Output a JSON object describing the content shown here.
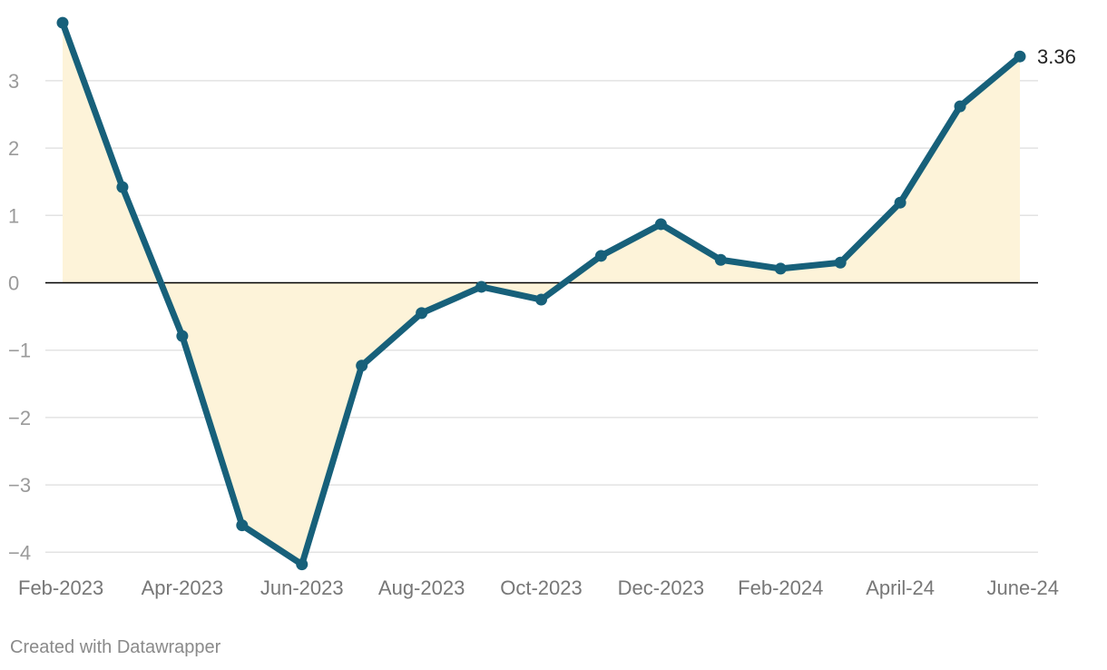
{
  "chart_data": {
    "type": "area",
    "x": [
      "Feb-2023",
      "Mar-2023",
      "Apr-2023",
      "May-2023",
      "Jun-2023",
      "Jul-2023",
      "Aug-2023",
      "Sep-2023",
      "Oct-2023",
      "Nov-2023",
      "Dec-2023",
      "Jan-2024",
      "Feb-2024",
      "Mar-2024",
      "April-24",
      "May-24",
      "June-24"
    ],
    "x_tick_labels": [
      "Feb-2023",
      "Apr-2023",
      "Jun-2023",
      "Aug-2023",
      "Oct-2023",
      "Dec-2023",
      "Feb-2024",
      "April-24",
      "June-24"
    ],
    "series": [
      {
        "values": [
          3.86,
          1.42,
          -0.79,
          -3.6,
          -4.18,
          -1.23,
          -0.45,
          -0.06,
          -0.25,
          0.4,
          0.87,
          0.34,
          0.21,
          0.3,
          1.19,
          2.62,
          3.36
        ]
      }
    ],
    "end_label": "3.36",
    "y_ticks": [
      3,
      2,
      1,
      0,
      -1,
      -2,
      -3,
      -4
    ],
    "y_tick_labels": [
      "3",
      "2",
      "1",
      "0",
      "−1",
      "−2",
      "−3",
      "−4"
    ],
    "ylim": [
      -4.2,
      3.9
    ],
    "grid": true,
    "line_color": "#17607a",
    "fill_color": "#fdf3d9",
    "zero_line_color": "#000000"
  },
  "footer": "Created with Datawrapper"
}
